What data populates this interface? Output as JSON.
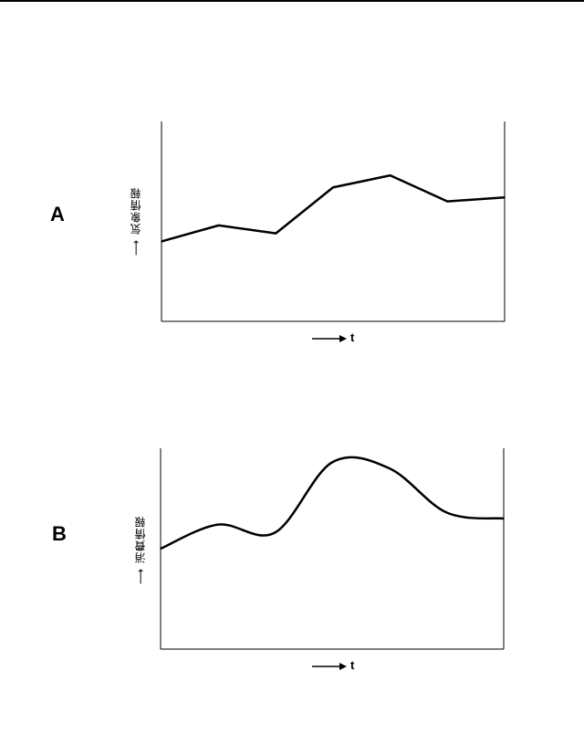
{
  "chart_data": [
    {
      "type": "line",
      "panel_label": "A",
      "ylabel": "気象情報",
      "xlabel": "t",
      "line_style": "polyline",
      "color": "#000000",
      "series": [
        {
          "values": [
            0.4,
            0.48,
            0.44,
            0.67,
            0.73,
            0.6,
            0.62
          ]
        }
      ],
      "ylim": [
        0,
        1
      ]
    },
    {
      "type": "line",
      "panel_label": "B",
      "ylabel": "消費情報",
      "xlabel": "t",
      "line_style": "smooth",
      "color": "#000000",
      "series": [
        {
          "values": [
            0.5,
            0.62,
            0.58,
            0.93,
            0.9,
            0.68,
            0.65
          ]
        }
      ],
      "ylim": [
        0,
        1
      ]
    }
  ]
}
